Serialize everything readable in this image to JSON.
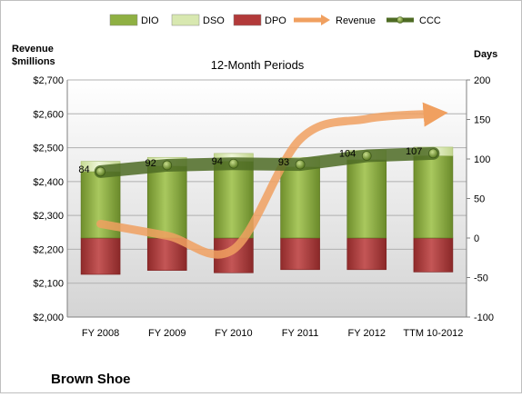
{
  "chart_data": {
    "type": "bar",
    "title": "12-Month Periods",
    "company": "Brown Shoe",
    "left_axis_title": [
      "Revenue",
      "$millions"
    ],
    "right_axis_title": "Days",
    "categories": [
      "FY 2008",
      "FY 2009",
      "FY 2010",
      "FY 2011",
      "FY 2012",
      "TTM 10-2012"
    ],
    "left_axis": {
      "min": 2000,
      "max": 2700,
      "step": 100,
      "tick_labels": [
        "$2,000",
        "$2,100",
        "$2,200",
        "$2,300",
        "$2,400",
        "$2,500",
        "$2,600",
        "$2,700"
      ]
    },
    "right_axis": {
      "min": -100,
      "max": 200,
      "step": 50,
      "tick_labels": [
        "-100",
        "-50",
        "0",
        "50",
        "100",
        "150",
        "200"
      ]
    },
    "legend": {
      "position": "top",
      "entries": [
        {
          "name": "DIO",
          "color": "#8fb043"
        },
        {
          "name": "DSO",
          "color": "#d8e8b0"
        },
        {
          "name": "DPO",
          "color": "#b23a3a"
        },
        {
          "name": "Revenue",
          "color": "#f0a060"
        },
        {
          "name": "CCC",
          "color": "#4e6b24"
        }
      ]
    },
    "series": [
      {
        "name": "DIO",
        "axis": "right",
        "values": [
          84,
          91,
          97,
          90,
          99,
          104
        ]
      },
      {
        "name": "DSO",
        "axis": "right",
        "values": [
          13,
          11,
          10,
          12,
          12,
          11
        ]
      },
      {
        "name": "DPO",
        "axis": "right",
        "values": [
          -46,
          -41,
          -44,
          -40,
          -40,
          -43
        ]
      },
      {
        "name": "Revenue",
        "axis": "left",
        "values": [
          2275,
          2240,
          2200,
          2525,
          2585,
          2600
        ]
      },
      {
        "name": "CCC",
        "axis": "right",
        "values": [
          84,
          92,
          94,
          93,
          104,
          107
        ],
        "labels": [
          "84",
          "92",
          "94",
          "93",
          "104",
          "107"
        ]
      }
    ],
    "grid": true
  }
}
